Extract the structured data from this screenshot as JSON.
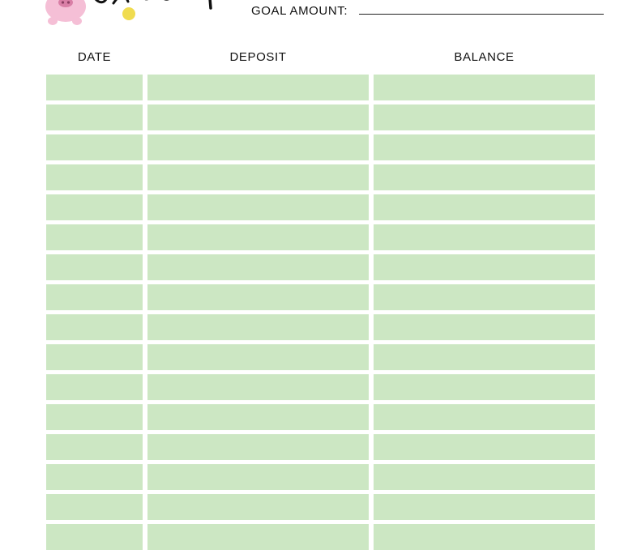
{
  "header": {
    "goal_label": "GOAL AMOUNT:"
  },
  "table": {
    "columns": [
      "DATE",
      "DEPOSIT",
      "BALANCE"
    ],
    "row_count": 16
  },
  "colors": {
    "row_fill": "#cce7c3",
    "pig": "#f5bfd6",
    "coin": "#f0dc50"
  },
  "icons": [
    "pig-icon",
    "coin-icon"
  ]
}
